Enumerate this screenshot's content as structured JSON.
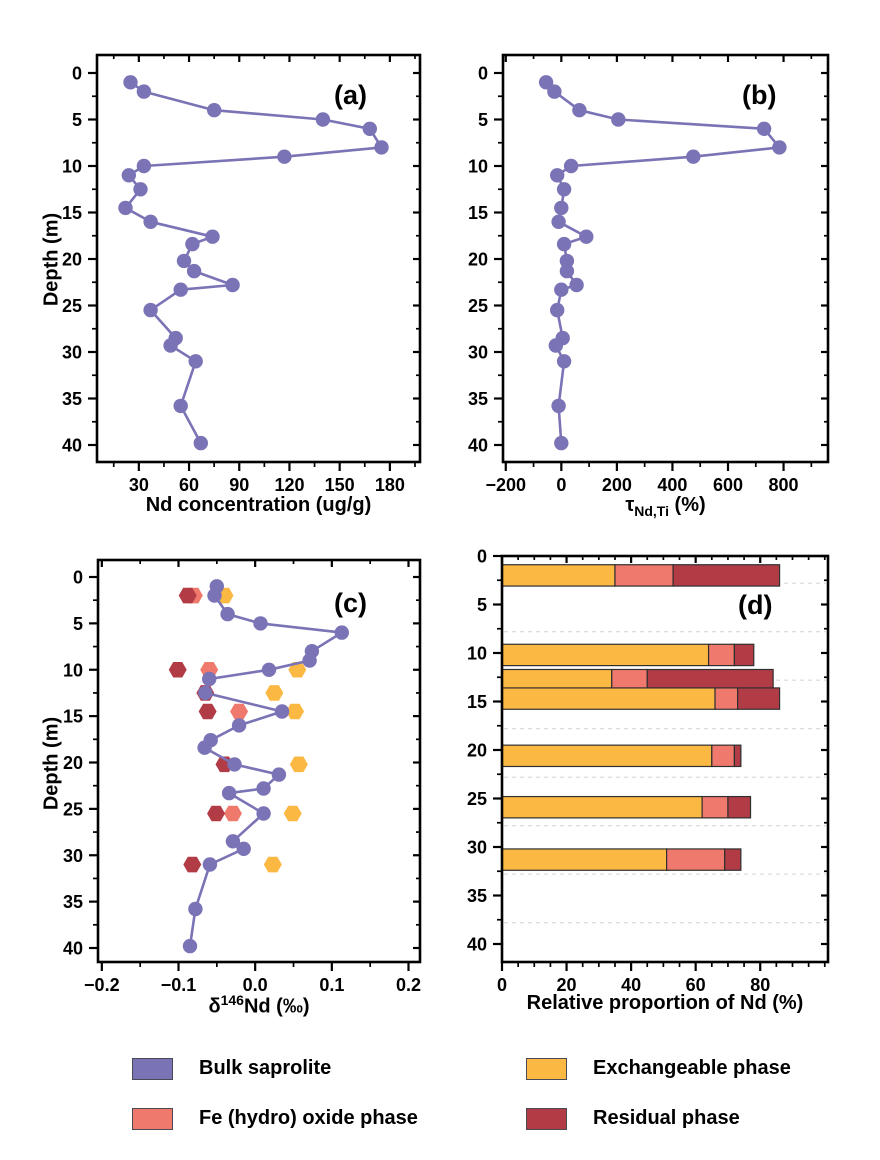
{
  "figure": {
    "background": "#ffffff"
  },
  "colors": {
    "bulk_saprolite": "#7A73B5",
    "fe_oxide_phase": "#F0796D",
    "exchangeable_phase": "#FBB843",
    "residual_phase": "#B23C46",
    "axis": "#000000",
    "gridline": "#d8d8d8",
    "bar_outline": "#2f2f2f"
  },
  "panel_letters": {
    "a": "(a)",
    "b": "(b)",
    "c": "(c)",
    "d": "(d)"
  },
  "axis_titles": {
    "a_x": "Nd concentration (ug/g)",
    "b_x_parts": {
      "base": "τ",
      "sub": "Nd,Ti",
      "rest": " (%)"
    },
    "c_x_parts": {
      "base": "δ",
      "sup": "146",
      "rest": "Nd (‰)"
    },
    "d_x": "Relative proportion of Nd (%)",
    "left_y": "Depth (m)"
  },
  "chart_data": [
    {
      "id": "a",
      "type": "line",
      "panel_label": "(a)",
      "xlabel": "Nd concentration (ug/g)",
      "ylabel": "Depth (m)",
      "x_range": [
        5,
        198
      ],
      "x_ticks": [
        30,
        60,
        90,
        120,
        150,
        180
      ],
      "x_tick_labels": [
        "30",
        "60",
        "90",
        "120",
        "150",
        "180"
      ],
      "x_minor_step": 15,
      "y_ticks": [
        0,
        5,
        10,
        15,
        20,
        25,
        30,
        35,
        40
      ],
      "y_minor_step": 2.5,
      "series": [
        {
          "name": "Bulk saprolite",
          "color": "#7A73B5",
          "marker": "circle",
          "line": true,
          "depths": [
            1,
            2,
            4,
            5,
            6,
            8,
            9,
            10,
            11,
            12.5,
            14.5,
            16,
            17.6,
            18.4,
            20.2,
            21.3,
            22.8,
            23.3,
            25.5,
            28.5,
            29.3,
            31,
            35.8,
            39.8
          ],
          "values": [
            25,
            33,
            75,
            140,
            168,
            175,
            117,
            33,
            24,
            31,
            22,
            37,
            74,
            62,
            57,
            63,
            86,
            55,
            37,
            52,
            49,
            64,
            55,
            67
          ]
        }
      ]
    },
    {
      "id": "b",
      "type": "line",
      "panel_label": "(b)",
      "xlabel": "τ_Nd,Ti (%)",
      "ylabel": "",
      "x_range": [
        -210,
        960
      ],
      "x_ticks": [
        -200,
        0,
        200,
        400,
        600,
        800
      ],
      "x_tick_labels": [
        "−200",
        "0",
        "200",
        "400",
        "600",
        "800"
      ],
      "x_minor_step": 100,
      "y_ticks": [
        0,
        5,
        10,
        15,
        20,
        25,
        30,
        35,
        40
      ],
      "y_minor_step": 2.5,
      "series": [
        {
          "name": "Bulk saprolite",
          "color": "#7A73B5",
          "marker": "circle",
          "line": true,
          "depths": [
            1,
            2,
            4,
            5,
            6,
            8,
            9,
            10,
            11,
            12.5,
            14.5,
            16,
            17.6,
            18.4,
            20.2,
            21.3,
            22.8,
            23.3,
            25.5,
            28.5,
            29.3,
            31,
            35.8,
            39.8
          ],
          "values": [
            -55,
            -25,
            65,
            205,
            730,
            785,
            475,
            35,
            -15,
            10,
            0,
            -10,
            90,
            10,
            20,
            20,
            55,
            0,
            -15,
            5,
            -20,
            10,
            -10,
            0
          ]
        }
      ]
    },
    {
      "id": "c",
      "type": "scatter",
      "panel_label": "(c)",
      "xlabel": "δ146Nd (‰)",
      "ylabel": "Depth (m)",
      "x_range": [
        -0.205,
        0.215
      ],
      "x_ticks": [
        -0.2,
        -0.1,
        0,
        0.1,
        0.2
      ],
      "x_tick_labels": [
        "−0.2",
        "−0.1",
        "0.0",
        "0.1",
        "0.2"
      ],
      "x_minor_step": 0.05,
      "y_ticks": [
        0,
        5,
        10,
        15,
        20,
        25,
        30,
        35,
        40
      ],
      "y_minor_step": 2.5,
      "series": [
        {
          "name": "Fe (hydro) oxide phase",
          "color": "#F0796D",
          "marker": "hexagon",
          "line": false,
          "points": [
            [
              2,
              -0.08
            ],
            [
              10,
              -0.06
            ],
            [
              14.5,
              -0.021
            ],
            [
              25.5,
              -0.029
            ]
          ]
        },
        {
          "name": "Residual phase",
          "color": "#B23C46",
          "marker": "hexagon",
          "line": false,
          "points": [
            [
              2,
              -0.088
            ],
            [
              10,
              -0.101
            ],
            [
              12.5,
              -0.065
            ],
            [
              14.5,
              -0.062
            ],
            [
              20.2,
              -0.04
            ],
            [
              25.5,
              -0.051
            ],
            [
              31,
              -0.082
            ]
          ]
        },
        {
          "name": "Exchangeable phase",
          "color": "#FBB843",
          "marker": "hexagon",
          "line": false,
          "points": [
            [
              2,
              -0.04
            ],
            [
              10,
              0.055
            ],
            [
              12.5,
              0.025
            ],
            [
              14.5,
              0.052
            ],
            [
              20.2,
              0.057
            ],
            [
              25.5,
              0.049
            ],
            [
              31,
              0.023
            ]
          ]
        },
        {
          "name": "Bulk saprolite",
          "color": "#7A73B5",
          "marker": "circle",
          "line": true,
          "depths": [
            1,
            2,
            4,
            5,
            6,
            8,
            9,
            10,
            11,
            12.5,
            14.5,
            16,
            17.6,
            18.4,
            20.2,
            21.3,
            22.8,
            23.3,
            25.5,
            28.5,
            29.3,
            31,
            35.8,
            39.8
          ],
          "values": [
            -0.05,
            -0.053,
            -0.036,
            0.007,
            0.113,
            0.074,
            0.071,
            0.018,
            -0.06,
            -0.065,
            0.035,
            -0.021,
            -0.058,
            -0.066,
            -0.027,
            0.031,
            0.011,
            -0.034,
            0.011,
            -0.029,
            -0.015,
            -0.059,
            -0.078,
            -0.085
          ]
        }
      ]
    },
    {
      "id": "d",
      "type": "bar",
      "panel_label": "(d)",
      "xlabel": "Relative proportion of Nd (%)",
      "ylabel": "",
      "x_range": [
        0,
        101
      ],
      "x_ticks": [
        0,
        20,
        40,
        60,
        80
      ],
      "x_tick_labels": [
        "0",
        "20",
        "40",
        "60",
        "80"
      ],
      "x_minor_step": 5,
      "y_ticks": [
        0,
        5,
        10,
        15,
        20,
        25,
        30,
        35,
        40
      ],
      "y_minor_step": 2.5,
      "stack_order": [
        "Exchangeable phase",
        "Fe (hydro) oxide phase",
        "Residual phase"
      ],
      "stack_colors": [
        "#FBB843",
        "#F0796D",
        "#B23C46"
      ],
      "bar_thickness_m": 2.2,
      "gridline_depths": [
        2.8,
        7.8,
        12.8,
        17.8,
        22.8,
        27.8,
        32.8,
        37.8
      ],
      "bars": [
        {
          "depth": 2.0,
          "segments": [
            35,
            18,
            33
          ]
        },
        {
          "depth": 10.2,
          "segments": [
            64,
            8,
            6
          ]
        },
        {
          "depth": 12.8,
          "segments": [
            34,
            11,
            39
          ]
        },
        {
          "depth": 14.7,
          "segments": [
            66,
            7,
            13
          ]
        },
        {
          "depth": 20.6,
          "segments": [
            65,
            7,
            2
          ]
        },
        {
          "depth": 25.9,
          "segments": [
            62,
            8,
            7
          ]
        },
        {
          "depth": 31.3,
          "segments": [
            51,
            18,
            5
          ]
        }
      ]
    }
  ],
  "legend": {
    "columns": [
      {
        "items": [
          {
            "label": "Bulk saprolite",
            "color": "#7A73B5"
          },
          {
            "label": "Fe (hydro) oxide phase",
            "color": "#F0796D"
          }
        ]
      },
      {
        "items": [
          {
            "label": "Exchangeable phase",
            "color": "#FBB843"
          },
          {
            "label": "Residual phase",
            "color": "#B23C46"
          }
        ]
      }
    ]
  }
}
